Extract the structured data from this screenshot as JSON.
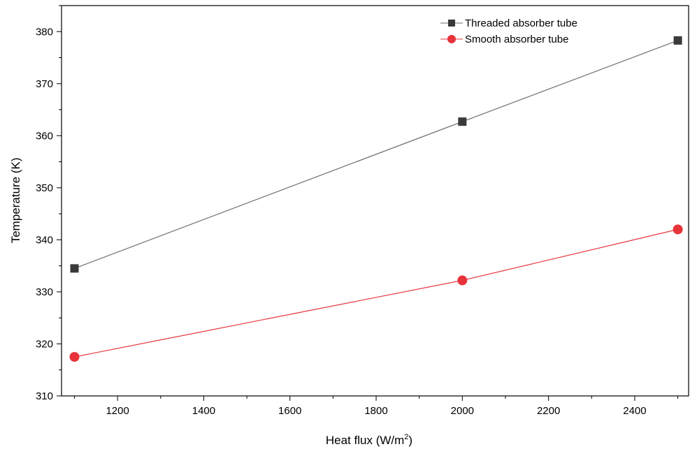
{
  "chart_data": {
    "type": "line",
    "xlabel": "Heat flux (W/m",
    "xlabel_sup": "2",
    "xlabel_close": ")",
    "ylabel": "Temperature (K)",
    "xlim": [
      1070,
      2525
    ],
    "ylim": [
      310,
      385
    ],
    "xticks": [
      1200,
      1400,
      1600,
      1800,
      2000,
      2200,
      2400
    ],
    "yticks": [
      310,
      320,
      330,
      340,
      350,
      360,
      370,
      380
    ],
    "grid": false,
    "legend_position": "top-right",
    "x": [
      1100,
      2000,
      2500
    ],
    "series": [
      {
        "name": "Threaded absorber tube",
        "values": [
          334.5,
          362.7,
          378.3
        ],
        "color": "#3a3a3a",
        "line_color": "#6e6e6e",
        "marker": "square"
      },
      {
        "name": "Smooth absorber tube",
        "values": [
          317.5,
          332.2,
          342.0
        ],
        "color": "#e8333a",
        "line_color": "#e8333a",
        "marker": "circle"
      }
    ]
  }
}
